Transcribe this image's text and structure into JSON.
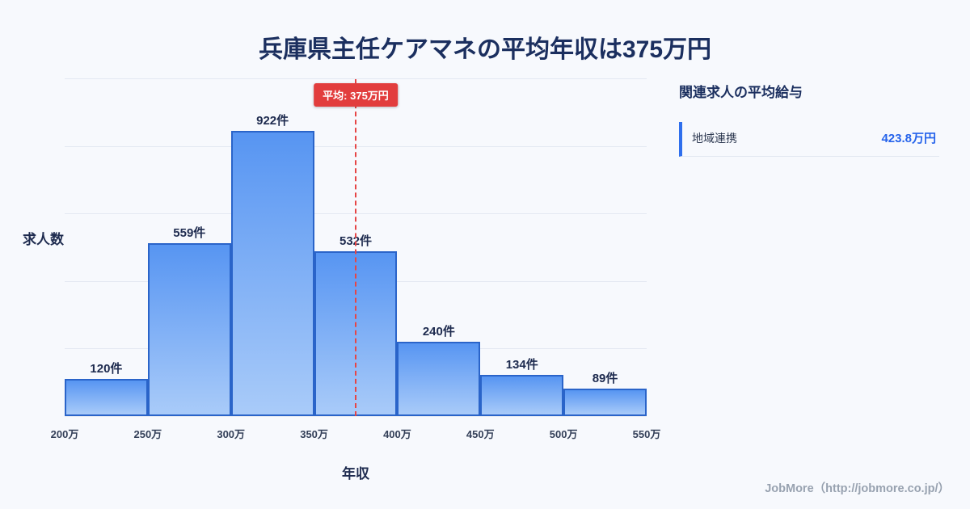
{
  "title": "兵庫県主任ケアマネの平均年収は375万円",
  "chart_data": {
    "type": "bar",
    "subtype": "histogram",
    "title": "兵庫県主任ケアマネの平均年収は375万円",
    "categories": [
      "200万",
      "250万",
      "300万",
      "350万",
      "400万",
      "450万",
      "500万",
      "550万"
    ],
    "bin_edges": [
      200,
      250,
      300,
      350,
      400,
      450,
      500,
      550
    ],
    "values": [
      120,
      559,
      922,
      532,
      240,
      134,
      89
    ],
    "value_suffix": "件",
    "xlabel": "年収",
    "ylabel": "求人数",
    "x_range": [
      200,
      550
    ],
    "ylim": [
      0,
      1100
    ],
    "grid": true,
    "legend": false,
    "mean_value": 375,
    "mean_label": "平均: 375万円",
    "colors": {
      "bar_fill_top": "#5795f2",
      "bar_fill_bottom": "#a9cbf9",
      "bar_border": "#2a64c9",
      "mean_line": "#e64545",
      "mean_badge_bg": "#e23d3d",
      "title_text": "#1b2f5f",
      "accent_blue": "#2563eb",
      "background": "#f7f9fd"
    }
  },
  "sidebar": {
    "heading": "関連求人の平均給与",
    "items": [
      {
        "label": "地域連携",
        "value": "423.8万円"
      }
    ]
  },
  "footer": {
    "credit": "JobMore（http://jobmore.co.jp/）"
  }
}
